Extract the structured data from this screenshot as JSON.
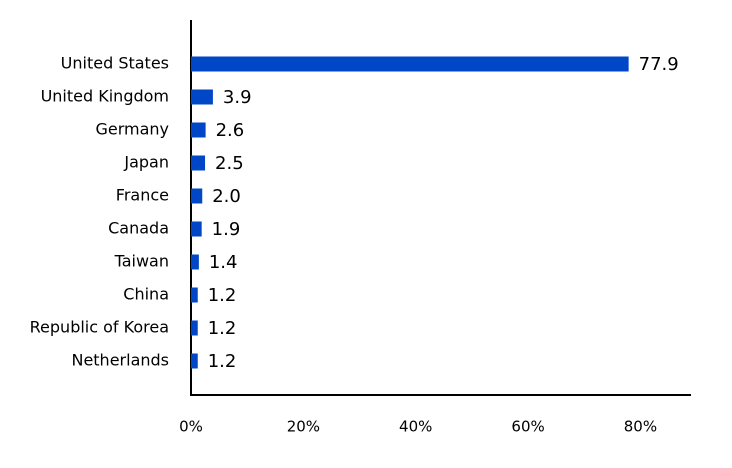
{
  "chart_data": {
    "type": "bar",
    "orientation": "horizontal",
    "categories": [
      "United States",
      "United Kingdom",
      "Germany",
      "Japan",
      "France",
      "Canada",
      "Taiwan",
      "China",
      "Republic of Korea",
      "Netherlands"
    ],
    "values": [
      77.9,
      3.9,
      2.6,
      2.5,
      2.0,
      1.9,
      1.4,
      1.2,
      1.2,
      1.2
    ],
    "value_labels": [
      "77.9",
      "3.9",
      "2.6",
      "2.5",
      "2.0",
      "1.9",
      "1.4",
      "1.2",
      "1.2",
      "1.2"
    ],
    "color": "#0047c8",
    "xlim": [
      0,
      89
    ],
    "xticks": [
      {
        "value": 0,
        "label": "0%"
      },
      {
        "value": 20,
        "label": "20%"
      },
      {
        "value": 40,
        "label": "40%"
      },
      {
        "value": 60,
        "label": "60%"
      },
      {
        "value": 80,
        "label": "80%"
      }
    ],
    "grid": false
  }
}
